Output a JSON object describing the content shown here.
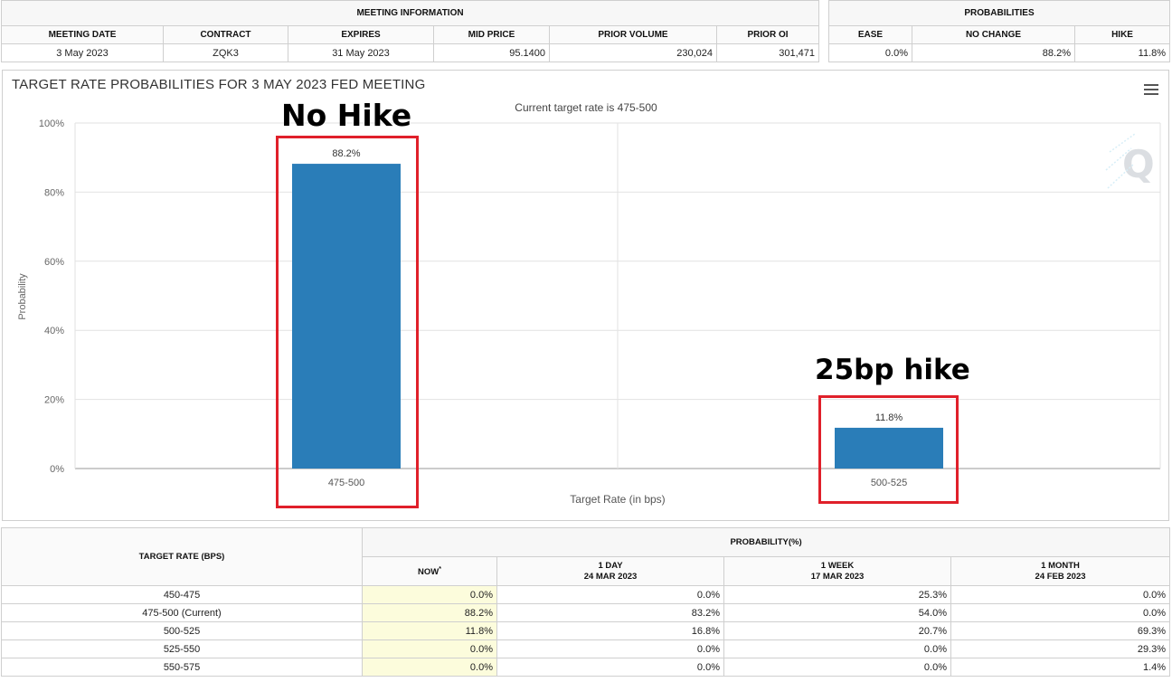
{
  "meeting_info": {
    "group_title": "MEETING INFORMATION",
    "headers": [
      "MEETING DATE",
      "CONTRACT",
      "EXPIRES",
      "MID PRICE",
      "PRIOR VOLUME",
      "PRIOR OI"
    ],
    "row": [
      "3 May 2023",
      "ZQK3",
      "31 May 2023",
      "95.1400",
      "230,024",
      "301,471"
    ]
  },
  "probabilities": {
    "group_title": "PROBABILITIES",
    "headers": [
      "EASE",
      "NO CHANGE",
      "HIKE"
    ],
    "row": [
      "0.0%",
      "88.2%",
      "11.8%"
    ]
  },
  "chart_panel": {
    "title": "TARGET RATE PROBABILITIES FOR 3 MAY 2023 FED MEETING",
    "menu_icon": "hamburger-menu-icon",
    "watermark_icon": "q-logo-watermark-icon",
    "annotations": {
      "no_hike": "No Hike",
      "hike_25bp": "25bp hike"
    },
    "highlight_color": "#e0202a"
  },
  "chart_data": {
    "type": "bar",
    "title": "",
    "subtitle": "Current target rate is 475-500",
    "xlabel": "Target Rate (in bps)",
    "ylabel": "Probability",
    "categories": [
      "475-500",
      "500-525"
    ],
    "values": [
      88.2,
      11.8
    ],
    "data_labels": [
      "88.2%",
      "11.8%"
    ],
    "ylim": [
      0,
      100
    ],
    "yticks": [
      "0%",
      "20%",
      "40%",
      "60%",
      "80%",
      "100%"
    ],
    "bar_color": "#2a7db8",
    "grid": true,
    "legend": "none"
  },
  "target_table": {
    "col_header": "TARGET RATE (BPS)",
    "group_title": "PROBABILITY(%)",
    "subheaders": [
      {
        "line1": "NOW",
        "line2": "",
        "sup": "*"
      },
      {
        "line1": "1 DAY",
        "line2": "24 MAR 2023",
        "sup": ""
      },
      {
        "line1": "1 WEEK",
        "line2": "17 MAR 2023",
        "sup": ""
      },
      {
        "line1": "1 MONTH",
        "line2": "24 FEB 2023",
        "sup": ""
      }
    ],
    "rows": [
      [
        "450-475",
        "0.0%",
        "0.0%",
        "25.3%",
        "0.0%"
      ],
      [
        "475-500 (Current)",
        "88.2%",
        "83.2%",
        "54.0%",
        "0.0%"
      ],
      [
        "500-525",
        "11.8%",
        "16.8%",
        "20.7%",
        "69.3%"
      ],
      [
        "525-550",
        "0.0%",
        "0.0%",
        "0.0%",
        "29.3%"
      ],
      [
        "550-575",
        "0.0%",
        "0.0%",
        "0.0%",
        "1.4%"
      ]
    ]
  }
}
